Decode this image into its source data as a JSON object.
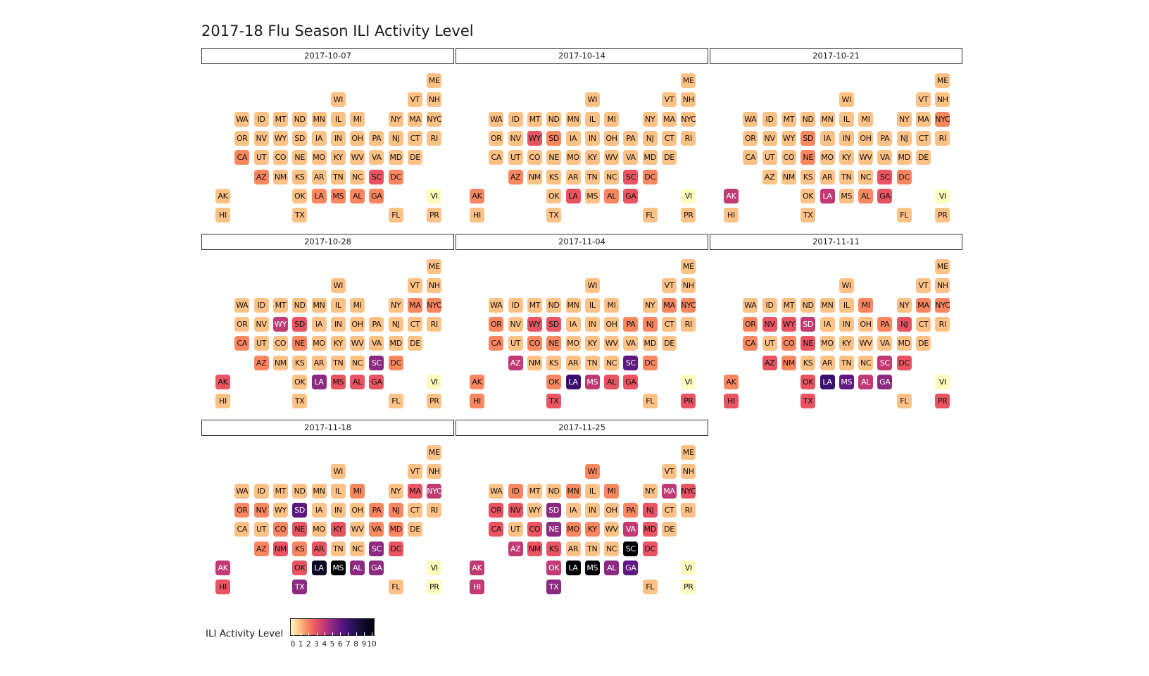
{
  "chart_data": {
    "type": "heatmap",
    "title": "2017-18 Flu Season ILI Activity Level",
    "legend": {
      "title": "ILI Activity Level",
      "ticks": [
        "0",
        "1",
        "2",
        "3",
        "4",
        "5",
        "6",
        "7",
        "8",
        "9",
        "10"
      ],
      "range": [
        0,
        10
      ],
      "placement": "bottom-left"
    },
    "colors": {
      "scale": [
        "#fcfdbf",
        "#fec287",
        "#fb8761",
        "#e95462",
        "#c13a73",
        "#8c2981",
        "#5f187f",
        "#3b0f70",
        "#1b1044",
        "#0c0926",
        "#000004"
      ]
    },
    "states": [
      "ME",
      "WI",
      "VT",
      "NH",
      "WA",
      "ID",
      "MT",
      "ND",
      "MN",
      "IL",
      "MI",
      "NY",
      "MA",
      "NYC",
      "OR",
      "NV",
      "WY",
      "SD",
      "IA",
      "IN",
      "OH",
      "PA",
      "NJ",
      "CT",
      "RI",
      "CA",
      "UT",
      "CO",
      "NE",
      "MO",
      "KY",
      "WV",
      "VA",
      "MD",
      "DE",
      "AZ",
      "NM",
      "KS",
      "AR",
      "TN",
      "NC",
      "SC",
      "DC",
      "AK",
      "OK",
      "LA",
      "MS",
      "AL",
      "GA",
      "VI",
      "HI",
      "TX",
      "FL",
      "PR"
    ],
    "weeks": [
      {
        "date": "2017-10-07",
        "levels": {
          "ME": 1,
          "WI": 1,
          "VT": 1,
          "NH": 1,
          "WA": 1,
          "ID": 1,
          "MT": 1,
          "ND": 1,
          "MN": 1,
          "IL": 1,
          "MI": 1,
          "NY": 1,
          "MA": 1,
          "NYC": 1,
          "OR": 1,
          "NV": 1,
          "WY": 1,
          "SD": 1,
          "IA": 1,
          "IN": 1,
          "OH": 1,
          "PA": 1,
          "NJ": 1,
          "CT": 1,
          "RI": 1,
          "CA": 2,
          "UT": 1,
          "CO": 1,
          "NE": 1,
          "MO": 1,
          "KY": 1,
          "WV": 1,
          "VA": 1,
          "MD": 1,
          "DE": 1,
          "AZ": 2,
          "NM": 1,
          "KS": 1,
          "AR": 1,
          "TN": 1,
          "NC": 1,
          "SC": 3,
          "DC": 2,
          "AK": 1,
          "OK": 1,
          "LA": 2,
          "MS": 2,
          "AL": 2,
          "GA": 2,
          "VI": 0,
          "HI": 1,
          "TX": 1,
          "FL": 1,
          "PR": 1
        }
      },
      {
        "date": "2017-10-14",
        "levels": {
          "ME": 1,
          "WI": 1,
          "VT": 1,
          "NH": 1,
          "WA": 1,
          "ID": 1,
          "MT": 1,
          "ND": 1,
          "MN": 1,
          "IL": 1,
          "MI": 1,
          "NY": 1,
          "MA": 1,
          "NYC": 1,
          "OR": 1,
          "NV": 1,
          "WY": 3,
          "SD": 2,
          "IA": 1,
          "IN": 1,
          "OH": 1,
          "PA": 1,
          "NJ": 1,
          "CT": 1,
          "RI": 1,
          "CA": 1,
          "UT": 1,
          "CO": 1,
          "NE": 1,
          "MO": 1,
          "KY": 1,
          "WV": 1,
          "VA": 1,
          "MD": 1,
          "DE": 1,
          "AZ": 2,
          "NM": 1,
          "KS": 1,
          "AR": 1,
          "TN": 1,
          "NC": 1,
          "SC": 3,
          "DC": 2,
          "AK": 2,
          "OK": 1,
          "LA": 3,
          "MS": 1,
          "AL": 2,
          "GA": 3,
          "VI": 0,
          "HI": 1,
          "TX": 1,
          "FL": 1,
          "PR": 1
        }
      },
      {
        "date": "2017-10-21",
        "levels": {
          "ME": 1,
          "WI": 1,
          "VT": 1,
          "NH": 1,
          "WA": 1,
          "ID": 1,
          "MT": 1,
          "ND": 1,
          "MN": 1,
          "IL": 1,
          "MI": 1,
          "NY": 1,
          "MA": 1,
          "NYC": 2,
          "OR": 1,
          "NV": 1,
          "WY": 1,
          "SD": 2,
          "IA": 1,
          "IN": 1,
          "OH": 1,
          "PA": 1,
          "NJ": 1,
          "CT": 1,
          "RI": 1,
          "CA": 1,
          "UT": 1,
          "CO": 1,
          "NE": 2,
          "MO": 1,
          "KY": 1,
          "WV": 1,
          "VA": 1,
          "MD": 1,
          "DE": 1,
          "AZ": 1,
          "NM": 1,
          "KS": 1,
          "AR": 1,
          "TN": 1,
          "NC": 1,
          "SC": 3,
          "DC": 2,
          "AK": 4,
          "OK": 1,
          "LA": 4,
          "MS": 1,
          "AL": 2,
          "GA": 3,
          "VI": 0,
          "HI": 1,
          "TX": 1,
          "FL": 1,
          "PR": 1
        }
      },
      {
        "date": "2017-10-28",
        "levels": {
          "ME": 1,
          "WI": 1,
          "VT": 1,
          "NH": 1,
          "WA": 1,
          "ID": 1,
          "MT": 1,
          "ND": 1,
          "MN": 1,
          "IL": 1,
          "MI": 1,
          "NY": 1,
          "MA": 2,
          "NYC": 2,
          "OR": 1,
          "NV": 1,
          "WY": 4,
          "SD": 3,
          "IA": 1,
          "IN": 1,
          "OH": 1,
          "PA": 1,
          "NJ": 1,
          "CT": 1,
          "RI": 1,
          "CA": 2,
          "UT": 1,
          "CO": 1,
          "NE": 2,
          "MO": 1,
          "KY": 1,
          "WV": 1,
          "VA": 1,
          "MD": 1,
          "DE": 1,
          "AZ": 2,
          "NM": 1,
          "KS": 1,
          "AR": 1,
          "TN": 1,
          "NC": 1,
          "SC": 5,
          "DC": 2,
          "AK": 3,
          "OK": 1,
          "LA": 5,
          "MS": 3,
          "AL": 3,
          "GA": 3,
          "VI": 0,
          "HI": 1,
          "TX": 1,
          "FL": 1,
          "PR": 1
        }
      },
      {
        "date": "2017-11-04",
        "levels": {
          "ME": 1,
          "WI": 1,
          "VT": 1,
          "NH": 1,
          "WA": 1,
          "ID": 1,
          "MT": 1,
          "ND": 1,
          "MN": 1,
          "IL": 1,
          "MI": 1,
          "NY": 1,
          "MA": 2,
          "NYC": 2,
          "OR": 2,
          "NV": 1,
          "WY": 3,
          "SD": 3,
          "IA": 1,
          "IN": 1,
          "OH": 1,
          "PA": 2,
          "NJ": 2,
          "CT": 1,
          "RI": 1,
          "CA": 2,
          "UT": 1,
          "CO": 2,
          "NE": 2,
          "MO": 1,
          "KY": 1,
          "WV": 1,
          "VA": 1,
          "MD": 1,
          "DE": 1,
          "AZ": 4,
          "NM": 1,
          "KS": 1,
          "AR": 1,
          "TN": 1,
          "NC": 1,
          "SC": 6,
          "DC": 2,
          "AK": 2,
          "OK": 2,
          "LA": 7,
          "MS": 4,
          "AL": 3,
          "GA": 3,
          "VI": 0,
          "HI": 2,
          "TX": 3,
          "FL": 1,
          "PR": 3
        }
      },
      {
        "date": "2017-11-11",
        "levels": {
          "ME": 1,
          "WI": 1,
          "VT": 1,
          "NH": 1,
          "WA": 1,
          "ID": 1,
          "MT": 1,
          "ND": 1,
          "MN": 1,
          "IL": 1,
          "MI": 2,
          "NY": 1,
          "MA": 2,
          "NYC": 2,
          "OR": 2,
          "NV": 3,
          "WY": 3,
          "SD": 4,
          "IA": 1,
          "IN": 1,
          "OH": 1,
          "PA": 2,
          "NJ": 3,
          "CT": 1,
          "RI": 1,
          "CA": 2,
          "UT": 1,
          "CO": 2,
          "NE": 3,
          "MO": 1,
          "KY": 1,
          "WV": 1,
          "VA": 1,
          "MD": 1,
          "DE": 1,
          "AZ": 3,
          "NM": 2,
          "KS": 1,
          "AR": 1,
          "TN": 1,
          "NC": 1,
          "SC": 4,
          "DC": 3,
          "AK": 2,
          "OK": 3,
          "LA": 7,
          "MS": 6,
          "AL": 4,
          "GA": 5,
          "VI": 0,
          "HI": 3,
          "TX": 3,
          "FL": 1,
          "PR": 3
        }
      },
      {
        "date": "2017-11-18",
        "levels": {
          "ME": 1,
          "WI": 1,
          "VT": 1,
          "NH": 1,
          "WA": 1,
          "ID": 1,
          "MT": 1,
          "ND": 1,
          "MN": 1,
          "IL": 1,
          "MI": 2,
          "NY": 1,
          "MA": 3,
          "NYC": 4,
          "OR": 2,
          "NV": 2,
          "WY": 1,
          "SD": 6,
          "IA": 1,
          "IN": 1,
          "OH": 1,
          "PA": 2,
          "NJ": 2,
          "CT": 1,
          "RI": 1,
          "CA": 1,
          "UT": 1,
          "CO": 2,
          "NE": 3,
          "MO": 1,
          "KY": 3,
          "WV": 1,
          "VA": 2,
          "MD": 2,
          "DE": 1,
          "AZ": 2,
          "NM": 3,
          "KS": 2,
          "AR": 3,
          "TN": 1,
          "NC": 1,
          "SC": 5,
          "DC": 3,
          "AK": 4,
          "OK": 3,
          "LA": 9,
          "MS": 10,
          "AL": 5,
          "GA": 5,
          "VI": 0,
          "HI": 3,
          "TX": 5,
          "FL": 1,
          "PR": 0
        }
      },
      {
        "date": "2017-11-25",
        "levels": {
          "ME": 1,
          "WI": 2,
          "VT": 1,
          "NH": 1,
          "WA": 1,
          "ID": 2,
          "MT": 1,
          "ND": 1,
          "MN": 2,
          "IL": 1,
          "MI": 2,
          "NY": 1,
          "MA": 4,
          "NYC": 3,
          "OR": 3,
          "NV": 3,
          "WY": 1,
          "SD": 5,
          "IA": 1,
          "IN": 1,
          "OH": 1,
          "PA": 2,
          "NJ": 3,
          "CT": 1,
          "RI": 1,
          "CA": 3,
          "UT": 1,
          "CO": 3,
          "NE": 5,
          "MO": 2,
          "KY": 2,
          "WV": 1,
          "VA": 4,
          "MD": 3,
          "DE": 1,
          "AZ": 4,
          "NM": 3,
          "KS": 3,
          "AR": 1,
          "TN": 1,
          "NC": 1,
          "SC": 10,
          "DC": 3,
          "AK": 4,
          "OK": 4,
          "LA": 10,
          "MS": 10,
          "AL": 5,
          "GA": 6,
          "VI": 0,
          "HI": 4,
          "TX": 5,
          "FL": 1,
          "PR": 0
        }
      }
    ]
  }
}
